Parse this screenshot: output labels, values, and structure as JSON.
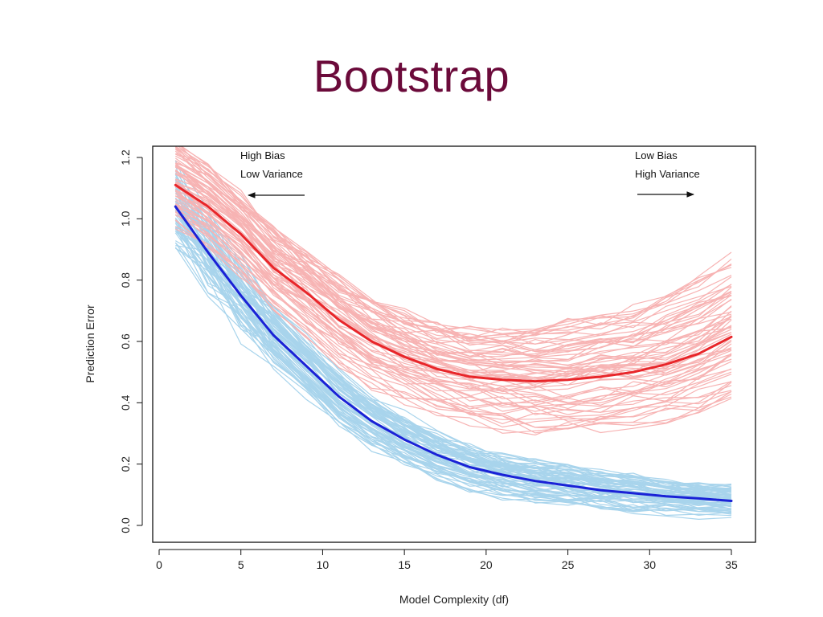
{
  "slide": {
    "title": "Bootstrap"
  },
  "chart_data": {
    "type": "line",
    "xlabel": "Model Complexity (df)",
    "ylabel": "Prediction Error",
    "xlim": [
      0,
      35
    ],
    "ylim": [
      0.0,
      1.2
    ],
    "xticks": [
      "0",
      "5",
      "10",
      "15",
      "20",
      "25",
      "30",
      "35"
    ],
    "yticks": [
      "0.0",
      "0.2",
      "0.4",
      "0.6",
      "0.8",
      "1.0",
      "1.2"
    ],
    "grid": false,
    "annotations": [
      {
        "lines": [
          "High Bias",
          "Low Variance"
        ],
        "arrow": "left"
      },
      {
        "lines": [
          "Low Bias",
          "High Variance"
        ],
        "arrow": "right"
      }
    ],
    "x": [
      1,
      3,
      5,
      7,
      9,
      11,
      13,
      15,
      17,
      19,
      21,
      23,
      25,
      27,
      29,
      31,
      33,
      35
    ],
    "series": [
      {
        "role": "test-mean",
        "color": "#e8262a",
        "values": [
          1.11,
          1.04,
          0.95,
          0.84,
          0.76,
          0.67,
          0.6,
          0.55,
          0.51,
          0.485,
          0.475,
          0.47,
          0.475,
          0.485,
          0.5,
          0.525,
          0.56,
          0.615
        ]
      },
      {
        "role": "train-mean",
        "color": "#1a22d6",
        "values": [
          1.04,
          0.89,
          0.75,
          0.62,
          0.52,
          0.42,
          0.34,
          0.28,
          0.23,
          0.19,
          0.165,
          0.145,
          0.13,
          0.115,
          0.105,
          0.095,
          0.088,
          0.08
        ]
      }
    ],
    "bundles": [
      {
        "role": "test-bootstrap-curves",
        "color": "#f7b3b3",
        "count": 70
      },
      {
        "role": "train-bootstrap-curves",
        "color": "#a8d4ec",
        "count": 70
      }
    ]
  }
}
